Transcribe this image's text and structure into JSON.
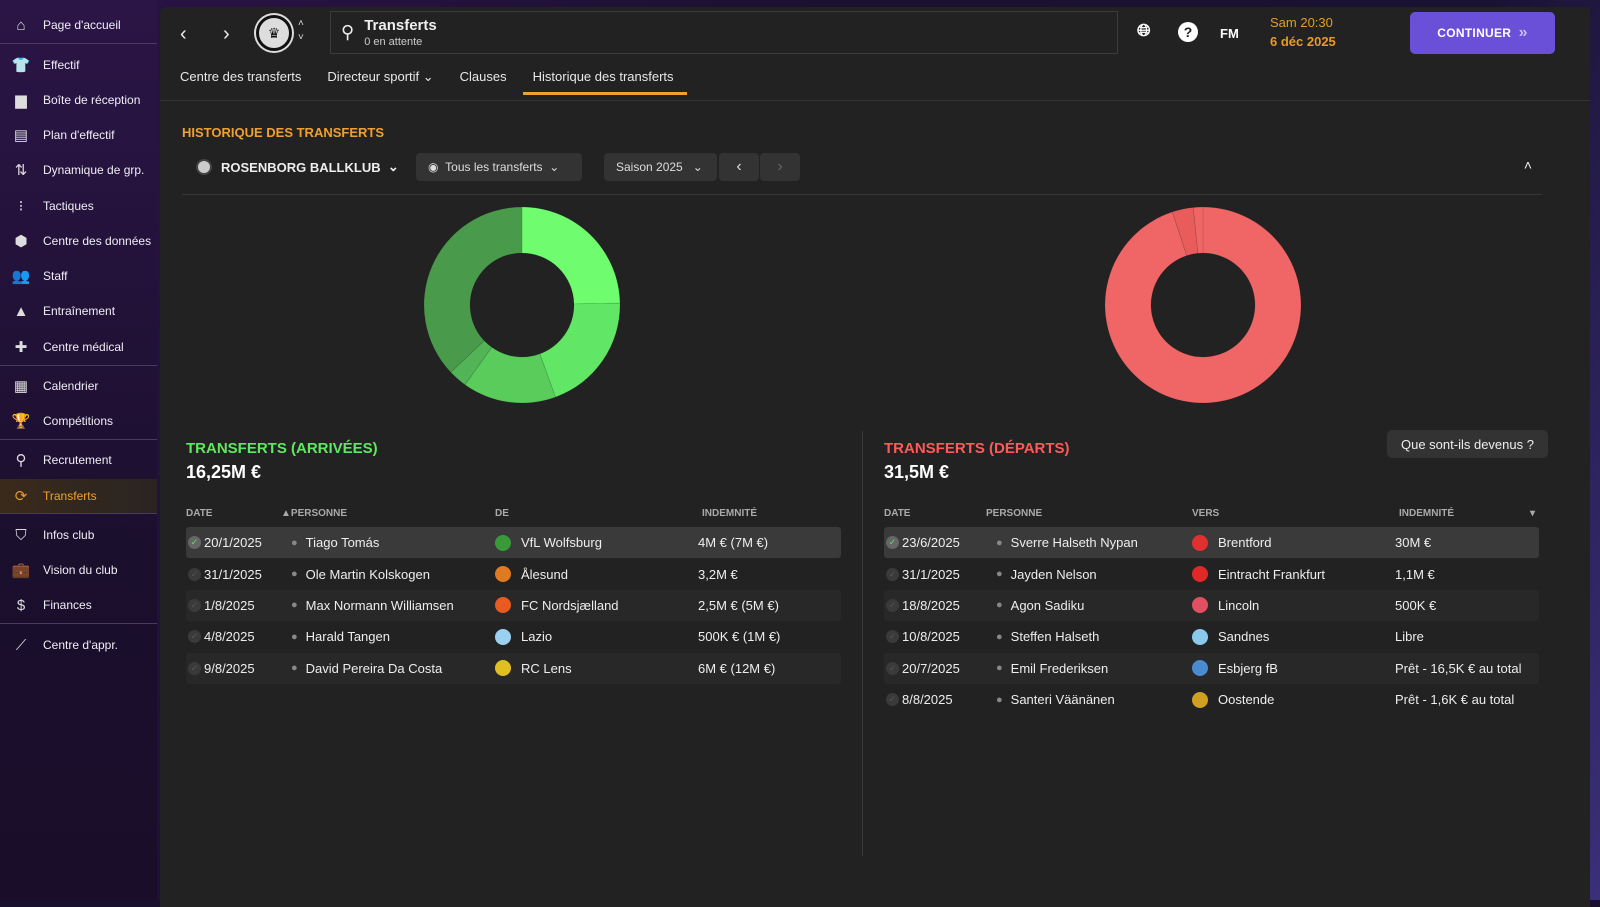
{
  "sidebar": {
    "items": [
      {
        "label": "Page d'accueil",
        "icon": "home-icon",
        "glyph": "⌂"
      },
      {
        "label": "Effectif",
        "icon": "jersey-icon",
        "glyph": "👕"
      },
      {
        "label": "Boîte de réception",
        "icon": "inbox-icon",
        "glyph": "▆"
      },
      {
        "label": "Plan d'effectif",
        "icon": "clipboard-icon",
        "glyph": "▤"
      },
      {
        "label": "Dynamique de grp.",
        "icon": "group-dynamics-icon",
        "glyph": "⇅"
      },
      {
        "label": "Tactiques",
        "icon": "tactics-icon",
        "glyph": "⁝"
      },
      {
        "label": "Centre des données",
        "icon": "data-hub-icon",
        "glyph": "⬢"
      },
      {
        "label": "Staff",
        "icon": "staff-icon",
        "glyph": "👥"
      },
      {
        "label": "Entraînement",
        "icon": "training-icon",
        "glyph": "▲"
      },
      {
        "label": "Centre médical",
        "icon": "medical-icon",
        "glyph": "✚"
      },
      {
        "label": "Calendrier",
        "icon": "calendar-icon",
        "glyph": "▦"
      },
      {
        "label": "Compétitions",
        "icon": "trophy-icon",
        "glyph": "🏆"
      },
      {
        "label": "Recrutement",
        "icon": "search-icon",
        "glyph": "⚲"
      },
      {
        "label": "Transferts",
        "icon": "transfer-icon",
        "glyph": "⟳"
      },
      {
        "label": "Infos club",
        "icon": "shield-icon",
        "glyph": "⛉"
      },
      {
        "label": "Vision du club",
        "icon": "briefcase-icon",
        "glyph": "💼"
      },
      {
        "label": "Finances",
        "icon": "money-icon",
        "glyph": "$"
      },
      {
        "label": "Centre d'appr.",
        "icon": "learning-icon",
        "glyph": "⟋"
      }
    ]
  },
  "header": {
    "title": "Transferts",
    "subtitle": "0 en attente",
    "fm": "FM",
    "help": "?",
    "time": "Sam 20:30",
    "date": "6 déc 2025",
    "continue": "CONTINUER",
    "continue_glyph": "»"
  },
  "tabs": [
    {
      "label": "Centre des transferts"
    },
    {
      "label": "Directeur sportif ⌄"
    },
    {
      "label": "Clauses"
    },
    {
      "label": "Historique des transferts"
    }
  ],
  "page": {
    "title": "HISTORIQUE DES TRANSFERTS",
    "club": "ROSENBORG BALLKLUB",
    "filter": "Tous les transferts",
    "season": "Saison 2025",
    "what_button": "Que sont-ils devenus ?"
  },
  "arrivals": {
    "title": "TRANSFERTS (ARRIVÉES)",
    "total": "16,25M €",
    "color": "#5fe85f",
    "headers": {
      "date": "DATE",
      "person": "▲PERSONNE",
      "club": "DE",
      "fee": "INDEMNITÉ"
    },
    "rows": [
      {
        "date": "20/1/2025",
        "person": "Tiago Tomás",
        "club": "VfL Wolfsburg",
        "fee": "4M € (7M €)",
        "crest": "#3a9a3a",
        "value": 4
      },
      {
        "date": "31/1/2025",
        "person": "Ole Martin Kolskogen",
        "club": "Ålesund",
        "fee": "3,2M €",
        "crest": "#e07a20",
        "value": 3.2
      },
      {
        "date": "1/8/2025",
        "person": "Max Normann Williamsen",
        "club": "FC Nordsjælland",
        "fee": "2,5M € (5M €)",
        "crest": "#e85a20",
        "value": 2.5
      },
      {
        "date": "4/8/2025",
        "person": "Harald Tangen",
        "club": "Lazio",
        "fee": "500K € (1M €)",
        "crest": "#9ad0f0",
        "value": 0.5
      },
      {
        "date": "9/8/2025",
        "person": "David Pereira Da Costa",
        "club": "RC Lens",
        "fee": "6M € (12M €)",
        "crest": "#e0c020",
        "value": 6
      }
    ],
    "slice_colors": [
      "#6ffc6f",
      "#62e665",
      "#59cc5c",
      "#52b456",
      "#4a9a4c"
    ]
  },
  "departures": {
    "title": "TRANSFERTS (DÉPARTS)",
    "total": "31,5M €",
    "color": "#ff5a5a",
    "headers": {
      "date": "DATE",
      "person": "PERSONNE",
      "club": "VERS",
      "fee": "INDEMNITÉ",
      "sort": "▾"
    },
    "rows": [
      {
        "date": "23/6/2025",
        "person": "Sverre Halseth Nypan",
        "club": "Brentford",
        "fee": "30M €",
        "crest": "#e03030",
        "value": 30
      },
      {
        "date": "31/1/2025",
        "person": "Jayden Nelson",
        "club": "Eintracht Frankfurt",
        "fee": "1,1M €",
        "crest": "#e02828",
        "value": 1.1
      },
      {
        "date": "18/8/2025",
        "person": "Agon Sadiku",
        "club": "Lincoln",
        "fee": "500K €",
        "crest": "#e05060",
        "value": 0.5
      },
      {
        "date": "10/8/2025",
        "person": "Steffen Halseth",
        "club": "Sandnes",
        "fee": "Libre",
        "crest": "#8ac8ec",
        "value": 0
      },
      {
        "date": "20/7/2025",
        "person": "Emil Frederiksen",
        "club": "Esbjerg fB",
        "fee": "Prêt - 16,5K € au total",
        "crest": "#4a8ad0",
        "value": 0
      },
      {
        "date": "8/8/2025",
        "person": "Santeri Väänänen",
        "club": "Oostende",
        "fee": "Prêt - 1,6K € au total",
        "crest": "#d0a020",
        "value": 0
      }
    ],
    "slice_colors": [
      "#f06565",
      "#e85c5c",
      "#f06565"
    ]
  }
}
